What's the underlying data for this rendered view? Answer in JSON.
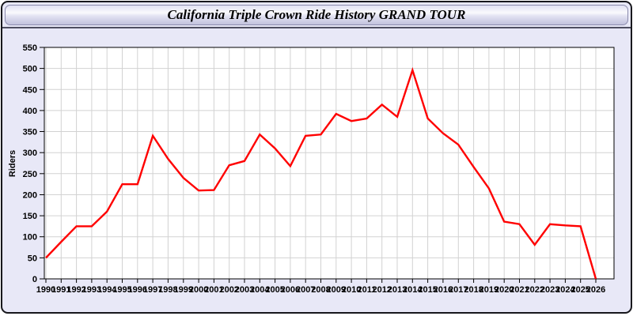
{
  "window": {
    "title": "California Triple Crown Ride History GRAND TOUR"
  },
  "chart_data": {
    "type": "line",
    "title": "California Triple Crown Ride History GRAND TOUR",
    "xlabel": "",
    "ylabel": "Riders",
    "ylim": [
      0,
      550
    ],
    "yticks": [
      0,
      50,
      100,
      150,
      200,
      250,
      300,
      350,
      400,
      450,
      500,
      550
    ],
    "grid": true,
    "legend": "none",
    "x": [
      1990,
      1991,
      1992,
      1993,
      1994,
      1995,
      1996,
      1997,
      1998,
      1999,
      2000,
      2001,
      2002,
      2003,
      2004,
      2005,
      2006,
      2007,
      2008,
      2009,
      2010,
      2011,
      2012,
      2013,
      2014,
      2015,
      2016,
      2017,
      2018,
      2019,
      2020,
      2021,
      2022,
      2023,
      2024,
      2025,
      2026
    ],
    "series": [
      {
        "name": "Riders",
        "color": "#ff0000",
        "values": [
          50,
          88,
          125,
          125,
          160,
          225,
          225,
          340,
          285,
          240,
          210,
          211,
          270,
          280,
          343,
          310,
          268,
          340,
          343,
          392,
          375,
          381,
          414,
          385,
          496,
          381,
          346,
          319,
          266,
          215,
          136,
          130,
          81,
          130,
          127,
          125,
          0
        ]
      }
    ],
    "colors": {
      "line": "#ff0000",
      "plot_background": "#ffffff",
      "panel_background": "#e8e8f7",
      "gridline": "#d2d2d2",
      "axis_border": "#000000"
    }
  }
}
